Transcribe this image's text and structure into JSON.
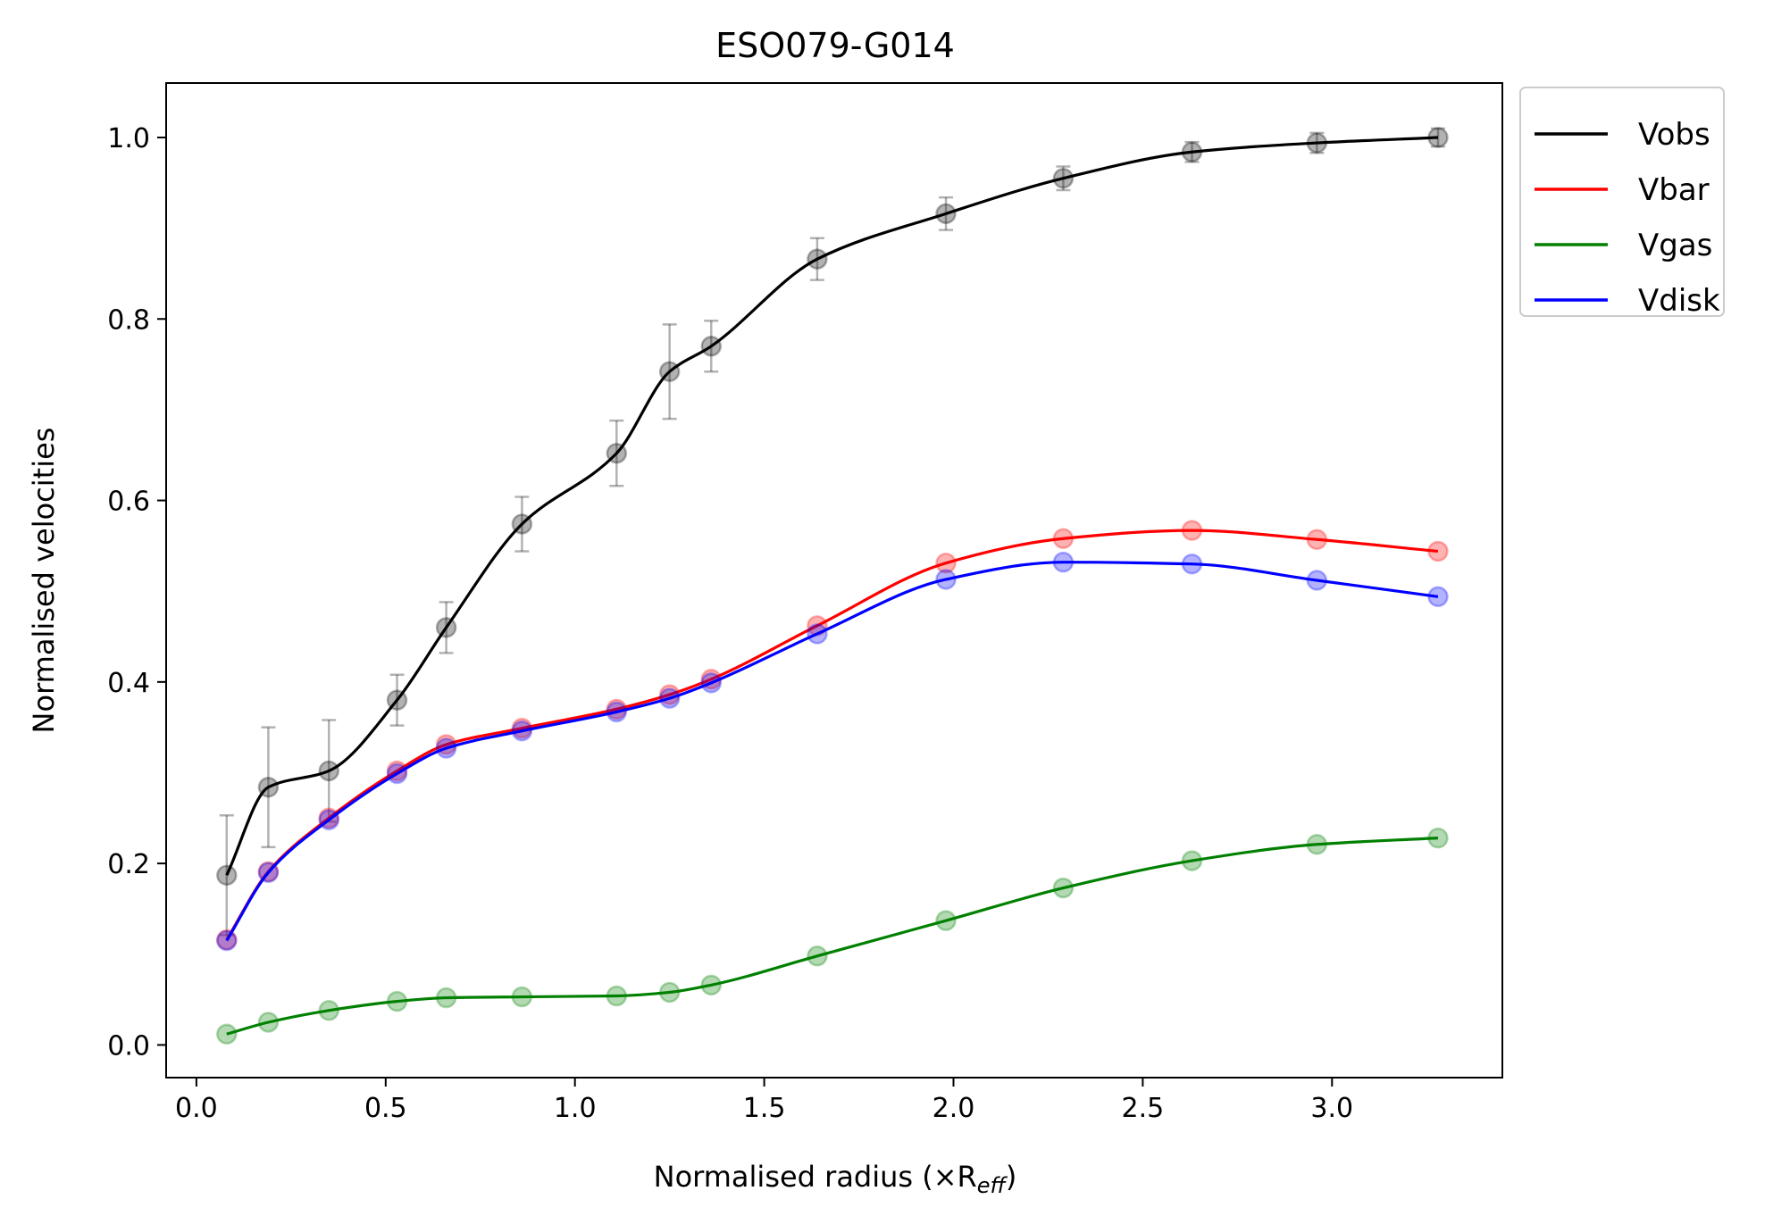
{
  "chart_data": {
    "type": "line",
    "title": "ESO079-G014",
    "xlabel": "Normalised radius (×R",
    "xlabel_sub": "eff",
    "xlabel_close": ")",
    "ylabel": "Normalised velocities",
    "xlim": [
      -0.08,
      3.45
    ],
    "ylim": [
      -0.036,
      1.06
    ],
    "xticks": [
      0.0,
      0.5,
      1.0,
      1.5,
      2.0,
      2.5,
      3.0
    ],
    "xtick_labels": [
      "0.0",
      "0.5",
      "1.0",
      "1.5",
      "2.0",
      "2.5",
      "3.0"
    ],
    "yticks": [
      0.0,
      0.2,
      0.4,
      0.6,
      0.8,
      1.0
    ],
    "ytick_labels": [
      "0.0",
      "0.2",
      "0.4",
      "0.6",
      "0.8",
      "1.0"
    ],
    "legend_position": "outside-top-right",
    "x": [
      0.08,
      0.19,
      0.35,
      0.53,
      0.66,
      0.86,
      1.11,
      1.25,
      1.36,
      1.64,
      1.98,
      2.29,
      2.63,
      2.96,
      3.28
    ],
    "series": [
      {
        "name": "Vobs",
        "color": "#000000",
        "values": [
          0.187,
          0.284,
          0.302,
          0.38,
          0.46,
          0.574,
          0.652,
          0.742,
          0.77,
          0.866,
          0.916,
          0.955,
          0.984,
          0.994,
          1.0
        ],
        "errors": [
          0.066,
          0.066,
          0.056,
          0.028,
          0.028,
          0.03,
          0.036,
          0.052,
          0.028,
          0.023,
          0.018,
          0.013,
          0.011,
          0.011,
          0.01
        ]
      },
      {
        "name": "Vbar",
        "color": "#ff0000",
        "values": [
          0.116,
          0.191,
          0.25,
          0.302,
          0.331,
          0.349,
          0.37,
          0.386,
          0.403,
          0.462,
          0.531,
          0.558,
          0.567,
          0.557,
          0.544
        ]
      },
      {
        "name": "Vgas",
        "color": "#008000",
        "values": [
          0.012,
          0.025,
          0.038,
          0.048,
          0.052,
          0.053,
          0.054,
          0.058,
          0.066,
          0.098,
          0.137,
          0.173,
          0.203,
          0.221,
          0.228
        ]
      },
      {
        "name": "Vdisk",
        "color": "#0000ff",
        "values": [
          0.115,
          0.19,
          0.248,
          0.299,
          0.327,
          0.346,
          0.367,
          0.382,
          0.399,
          0.453,
          0.513,
          0.532,
          0.53,
          0.512,
          0.494
        ]
      }
    ]
  }
}
